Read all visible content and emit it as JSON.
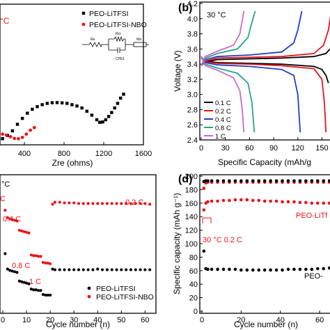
{
  "chart_data": [
    {
      "panel": "a",
      "type": "scatter",
      "xlabel": "Zre (ohms)",
      "xticks": [
        "400",
        "800",
        "1200",
        "1600"
      ],
      "xlim": [
        0,
        1600
      ],
      "ylim": [
        0,
        1000
      ],
      "annotation": "°C",
      "inset_labels": [
        "Re",
        "Rct",
        "CPE1",
        "Wo"
      ],
      "legend_position": "top-right",
      "series": [
        {
          "name": "PEO-LiTFSI",
          "marker": "square",
          "color": "#000000",
          "x": [
            80,
            130,
            180,
            230,
            280,
            330,
            380,
            430,
            480,
            530,
            580,
            630,
            680,
            730,
            780,
            830,
            880,
            930,
            980,
            1030,
            1080,
            1130,
            1160,
            1190,
            1220,
            1250,
            1280,
            1310,
            1340,
            1370,
            1400
          ],
          "y": [
            8,
            15,
            20,
            45,
            80,
            130,
            175,
            215,
            245,
            265,
            280,
            290,
            295,
            296,
            294,
            290,
            280,
            270,
            255,
            230,
            200,
            165,
            145,
            148,
            165,
            190,
            220,
            255,
            290,
            330,
            360
          ]
        },
        {
          "name": "PEO-LiTFSI-NBO",
          "marker": "circle",
          "color": "#e8141b",
          "x": [
            20,
            60,
            100,
            140,
            180,
            220,
            260,
            300,
            340,
            380,
            420,
            460,
            500
          ],
          "y": [
            10,
            25,
            40,
            52,
            55,
            48,
            35,
            22,
            20,
            30,
            55,
            85,
            105
          ]
        }
      ]
    },
    {
      "panel": "b",
      "type": "line",
      "xlabel": "Specific Capacity (mAh/g",
      "ylabel": "Voltage (V)",
      "xticks": [
        "0",
        "30",
        "60",
        "90",
        "120",
        "150"
      ],
      "yticks": [
        "2.4",
        "2.6",
        "2.8",
        "3.0",
        "3.2",
        "3.4",
        "3.6",
        "3.8",
        "4.0",
        "4.2"
      ],
      "xlim": [
        0,
        160
      ],
      "ylim": [
        2.4,
        4.2
      ],
      "annotation": "30 °C",
      "legend_position": "bottom-left",
      "series": [
        {
          "name": "0.1 C",
          "color": "#000000",
          "charge": {
            "x": [
              0,
              5,
              20,
              60,
              100,
              140,
              155,
              160
            ],
            "y": [
              3.38,
              3.43,
              3.46,
              3.47,
              3.48,
              3.5,
              3.54,
              3.6
            ]
          },
          "discharge": {
            "x": [
              0,
              5,
              20,
              60,
              100,
              140,
              150,
              155,
              158
            ],
            "y": [
              3.48,
              3.44,
              3.42,
              3.41,
              3.4,
              3.37,
              3.33,
              3.25,
              3.15
            ]
          }
        },
        {
          "name": "0.2 C",
          "color": "#e8141b",
          "charge": {
            "x": [
              0,
              5,
              20,
              60,
              100,
              140,
              152,
              158,
              162
            ],
            "y": [
              3.38,
              3.44,
              3.48,
              3.49,
              3.5,
              3.54,
              3.65,
              3.85,
              4.12
            ]
          },
          "discharge": {
            "x": [
              0,
              5,
              20,
              60,
              100,
              140,
              150,
              153,
              155
            ],
            "y": [
              3.5,
              3.43,
              3.41,
              3.4,
              3.38,
              3.34,
              3.2,
              2.9,
              2.5
            ]
          }
        },
        {
          "name": "0.4 C",
          "color": "#1f3fbf",
          "charge": {
            "x": [
              0,
              5,
              20,
              60,
              100,
              115,
              120,
              125
            ],
            "y": [
              3.38,
              3.46,
              3.5,
              3.52,
              3.56,
              3.68,
              3.85,
              4.1
            ]
          },
          "discharge": {
            "x": [
              0,
              5,
              20,
              60,
              100,
              115,
              120,
              123
            ],
            "y": [
              3.5,
              3.42,
              3.39,
              3.37,
              3.33,
              3.25,
              3.0,
              2.5
            ]
          }
        },
        {
          "name": "0.8 C",
          "color": "#2aa28f",
          "charge": {
            "x": [
              0,
              5,
              20,
              45,
              58,
              63,
              67
            ],
            "y": [
              3.38,
              3.48,
              3.54,
              3.6,
              3.75,
              3.95,
              4.1
            ]
          },
          "discharge": {
            "x": [
              0,
              5,
              20,
              45,
              58,
              63,
              66
            ],
            "y": [
              3.5,
              3.4,
              3.35,
              3.28,
              3.15,
              2.9,
              2.5
            ]
          }
        },
        {
          "name": "1 C",
          "color": "#c86ad0",
          "charge": {
            "x": [
              0,
              5,
              20,
              40,
              48,
              51,
              53
            ],
            "y": [
              3.38,
              3.5,
              3.57,
              3.65,
              3.8,
              3.98,
              4.1
            ]
          },
          "discharge": {
            "x": [
              0,
              5,
              20,
              40,
              48,
              51,
              53
            ],
            "y": [
              3.5,
              3.38,
              3.32,
              3.22,
              3.05,
              2.8,
              2.5
            ]
          }
        }
      ]
    },
    {
      "panel": "c",
      "type": "scatter",
      "xlabel": "Cycle number (n)",
      "xticks": [
        "0",
        "10",
        "20",
        "30",
        "40",
        "50",
        "60"
      ],
      "xlim": [
        0,
        64
      ],
      "ylim": [
        0,
        200
      ],
      "annotation": "°C",
      "rate_labels": [
        "0.2 C",
        "C",
        "0.4 C",
        "0.8 C",
        "1 C",
        "0.2 C"
      ],
      "legend_position": "bottom-right",
      "series": [
        {
          "name": "PEO-LiTFSI",
          "color": "#000000",
          "x": [
            1,
            2,
            3,
            4,
            5,
            6,
            7,
            8,
            9,
            10,
            11,
            12,
            13,
            14,
            15,
            16,
            17,
            18,
            19,
            20,
            21,
            22,
            24,
            26,
            28,
            30,
            32,
            34,
            36,
            38,
            40,
            42,
            44,
            46,
            48,
            50,
            52,
            54,
            56,
            58,
            60,
            62
          ],
          "y": [
            85,
            62,
            60,
            59,
            58,
            57,
            44,
            43,
            42,
            41,
            40,
            32,
            31,
            31,
            30,
            30,
            24,
            23,
            23,
            23,
            62,
            61,
            61,
            61,
            61,
            61,
            61,
            61,
            61,
            61,
            62,
            61,
            61,
            61,
            61,
            61,
            61,
            61,
            61,
            61,
            61,
            61
          ]
        },
        {
          "name": "PEO-LiTFSI-NBO",
          "color": "#e8141b",
          "x": [
            1,
            2,
            3,
            4,
            5,
            6,
            7,
            8,
            9,
            10,
            11,
            12,
            13,
            14,
            15,
            16,
            17,
            18,
            19,
            20,
            21,
            22,
            24,
            26,
            28,
            30,
            32,
            34,
            36,
            38,
            40,
            42,
            44,
            46,
            48,
            50,
            52,
            54,
            56,
            58,
            60,
            62
          ],
          "y": [
            150,
            139,
            137,
            136,
            135,
            134,
            120,
            119,
            118,
            117,
            116,
            83,
            82,
            82,
            81,
            81,
            72,
            71,
            71,
            70,
            159,
            162,
            162,
            161,
            161,
            161,
            160,
            160,
            160,
            160,
            160,
            160,
            160,
            160,
            160,
            160,
            160,
            160,
            160,
            160,
            160,
            159
          ]
        }
      ]
    },
    {
      "panel": "d",
      "type": "scatter",
      "xlabel": "Cycle number (n)",
      "ylabel": "Specific capacity (mAh g⁻¹)",
      "xticks": [
        "0",
        "20",
        "40",
        "60"
      ],
      "yticks": [
        "0",
        "20",
        "40",
        "60",
        "80",
        "100",
        "120",
        "140",
        "160",
        "180",
        "200"
      ],
      "xlim": [
        0,
        66
      ],
      "ylim": [
        0,
        200
      ],
      "annotation": "30 °C 0.2 C",
      "series_labels": [
        "PEO-LiTf",
        "PEO-"
      ],
      "series": [
        {
          "name": "PEO-LiTFSI-NBO capacity",
          "color": "#e8141b",
          "x": [
            1,
            2,
            3,
            5,
            8,
            11,
            14,
            17,
            20,
            23,
            26,
            29,
            32,
            35,
            38,
            41,
            44,
            47,
            50,
            53,
            56,
            59,
            62,
            65
          ],
          "y": [
            150,
            160,
            162,
            163,
            163,
            164,
            164,
            165,
            165,
            165,
            164,
            164,
            163,
            163,
            163,
            162,
            162,
            162,
            161,
            161,
            160,
            160,
            160,
            160
          ]
        },
        {
          "name": "PEO-LiTFSI capacity",
          "color": "#000000",
          "x": [
            1,
            2,
            3,
            5,
            8,
            11,
            14,
            17,
            20,
            23,
            26,
            29,
            32,
            35,
            38,
            41,
            44,
            47,
            50,
            53,
            56,
            59,
            62,
            65
          ],
          "y": [
            89,
            63,
            62,
            62,
            62,
            62,
            62,
            62,
            61,
            61,
            61,
            61,
            61,
            61,
            61,
            61,
            62,
            62,
            62,
            62,
            62,
            63,
            63,
            64
          ]
        },
        {
          "name": "PEO-LiTFSI-NBO efficiency",
          "color": "#e8141b",
          "x": [
            1,
            2,
            3,
            5,
            8,
            11,
            14,
            17,
            20,
            23,
            26,
            29,
            32,
            35,
            38,
            41,
            44,
            47,
            50,
            53,
            56,
            59,
            62,
            65
          ],
          "y": [
            182,
            190,
            191,
            191,
            191,
            191,
            191,
            191,
            191,
            191,
            191,
            191,
            191,
            191,
            191,
            191,
            191,
            191,
            191,
            191,
            191,
            191,
            191,
            191
          ]
        },
        {
          "name": "PEO-LiTFSI efficiency",
          "color": "#000000",
          "x": [
            1,
            2,
            3,
            5,
            8,
            11,
            14,
            17,
            20,
            23,
            26,
            29,
            32,
            35,
            38,
            41,
            44,
            47,
            50,
            53,
            56,
            59,
            62,
            65
          ],
          "y": [
            192,
            193,
            193,
            193,
            193,
            193,
            193,
            193,
            193,
            193,
            193,
            193,
            193,
            193,
            193,
            193,
            193,
            193,
            193,
            193,
            193,
            193,
            193,
            193
          ]
        }
      ]
    }
  ],
  "panel_labels": {
    "b": "(b)",
    "d": "(d)"
  },
  "colors": {
    "black": "#000000",
    "red": "#e8141b",
    "blue": "#1f3fbf",
    "teal": "#2aa28f",
    "violet": "#c86ad0"
  }
}
